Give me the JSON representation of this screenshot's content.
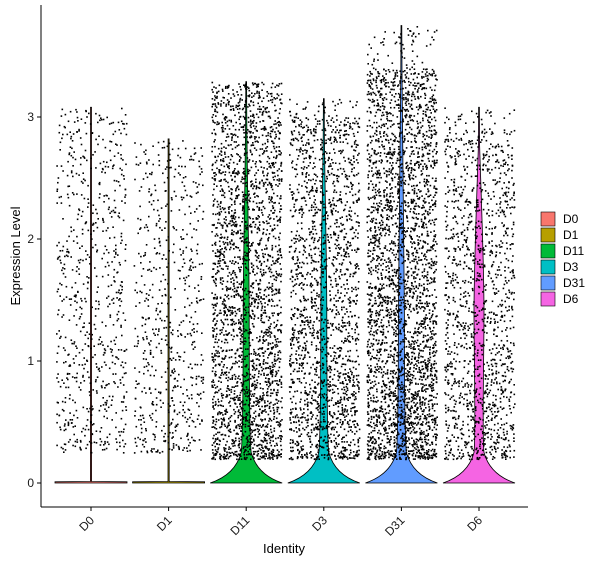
{
  "chart_data": {
    "type": "violin",
    "title": "",
    "xlabel": "Identity",
    "ylabel": "Expression Level",
    "ylim": [
      -0.2,
      3.9
    ],
    "yticks": [
      0,
      1,
      2,
      3
    ],
    "grid": false,
    "legend_position": "right",
    "points_overlay": true,
    "categories": [
      "D0",
      "D1",
      "D11",
      "D3",
      "D31",
      "D6"
    ],
    "series": [
      {
        "name": "D0",
        "color": "#F8766D",
        "max": 3.08,
        "jitter_min": 0.25,
        "jitter_max": 3.0,
        "point_count": 700
      },
      {
        "name": "D1",
        "color": "#B79F00",
        "max": 2.82,
        "jitter_min": 0.25,
        "jitter_max": 2.78,
        "point_count": 600
      },
      {
        "name": "D11",
        "color": "#00BA38",
        "max": 3.29,
        "jitter_min": 0.2,
        "jitter_max": 3.2,
        "point_count": 2600
      },
      {
        "name": "D3",
        "color": "#00BFC4",
        "max": 3.15,
        "jitter_min": 0.2,
        "jitter_max": 3.0,
        "point_count": 1900
      },
      {
        "name": "D31",
        "color": "#619CFF",
        "max": 3.75,
        "jitter_min": 0.2,
        "jitter_max": 3.4,
        "point_count": 3200
      },
      {
        "name": "D6",
        "color": "#F564E3",
        "max": 3.08,
        "jitter_min": 0.2,
        "jitter_max": 2.9,
        "point_count": 1400
      }
    ],
    "legend": [
      {
        "label": "D0",
        "color": "#F8766D"
      },
      {
        "label": "D1",
        "color": "#B79F00"
      },
      {
        "label": "D11",
        "color": "#00BA38"
      },
      {
        "label": "D3",
        "color": "#00BFC4"
      },
      {
        "label": "D31",
        "color": "#619CFF"
      },
      {
        "label": "D6",
        "color": "#F564E3"
      }
    ]
  }
}
